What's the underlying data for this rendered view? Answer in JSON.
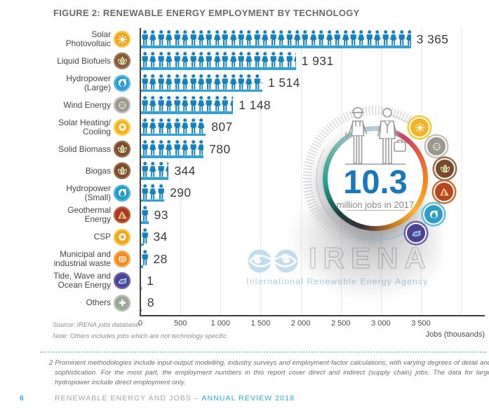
{
  "title": "FIGURE 2: RENEWABLE ENERGY EMPLOYMENT BY TECHNOLOGY",
  "chart_data": {
    "type": "bar",
    "subtype": "pictogram",
    "orientation": "horizontal",
    "title": "FIGURE 2: RENEWABLE ENERGY EMPLOYMENT BY TECHNOLOGY",
    "xlabel": "Jobs (thousands)",
    "xlim": [
      0,
      4000
    ],
    "x_ticks": [
      0,
      500,
      1000,
      1500,
      2000,
      2500,
      3000,
      3500
    ],
    "x_tick_labels": [
      "0",
      "500",
      "1 000",
      "1 500",
      "2 000",
      "2 500",
      "3 000",
      "3 500"
    ],
    "grid": true,
    "person_unit_jobs_thousands": 100,
    "categories": [
      "Solar Photovoltaic",
      "Liquid Biofuels",
      "Hydropower (Large)",
      "Wind Energy",
      "Solar Heating/Cooling",
      "Solid Biomass",
      "Biogas",
      "Hydropower (Small)",
      "Geothermal Energy",
      "CSP",
      "Municipal and industrial waste",
      "Tide, Wave and Ocean Energy",
      "Others"
    ],
    "values": [
      3365,
      1931,
      1514,
      1148,
      807,
      780,
      344,
      290,
      93,
      34,
      28,
      1,
      8
    ],
    "value_labels": [
      "3 365",
      "1 931",
      "1 514",
      "1 148",
      "807",
      "780",
      "344",
      "290",
      "93",
      "34",
      "28",
      "1",
      "8"
    ],
    "rows": [
      {
        "label": "Solar\nPhotovoltaic",
        "icon": "sun",
        "bg": "#F0A41E",
        "ring": "#F8CB4E"
      },
      {
        "label": "Liquid Biofuels",
        "icon": "leaf",
        "bg": "#86583A",
        "ring": "#A37C52"
      },
      {
        "label": "Hydropower\n(Large)",
        "icon": "drop",
        "bg": "#2E9CD6",
        "ring": "#63BBE6"
      },
      {
        "label": "Wind Energy",
        "icon": "wind",
        "bg": "#99998F",
        "ring": "#C0C0B6"
      },
      {
        "label": "Solar Heating/\nCooling",
        "icon": "ring",
        "bg": "#F7B11C",
        "ring": "#FBD24F"
      },
      {
        "label": "Solid Biomass",
        "icon": "leaf",
        "bg": "#7A4A2C",
        "ring": "#9A6C45"
      },
      {
        "label": "Biogas",
        "icon": "leaf",
        "bg": "#7A4A2C",
        "ring": "#9A6C45"
      },
      {
        "label": "Hydropower\n(Small)",
        "icon": "drop",
        "bg": "#2399C6",
        "ring": "#55B7D9"
      },
      {
        "label": "Geothermal\nEnergy",
        "icon": "volcano",
        "bg": "#A63A22",
        "ring": "#C25E3A"
      },
      {
        "label": "CSP",
        "icon": "ring",
        "bg": "#F2A51D",
        "ring": "#F8C94A"
      },
      {
        "label": "Municipal and\nindustrial waste",
        "icon": "bin",
        "bg": "#F18A21",
        "ring": "#F6AE58"
      },
      {
        "label": "Tide, Wave and\nOcean Energy",
        "icon": "wave",
        "bg": "#4D4392",
        "ring": "#6E61B2"
      },
      {
        "label": "Others",
        "icon": "plus",
        "bg": "#9BA89A",
        "ring": "#B7C2B5"
      }
    ]
  },
  "badge": {
    "value": "10.3",
    "caption": "million jobs in 2017",
    "satellites": [
      {
        "icon": "sun",
        "bg": "#F6B221",
        "ring": "#F2CB2E"
      },
      {
        "icon": "wind",
        "bg": "#99998F",
        "ring": "#C2C2B8"
      },
      {
        "icon": "leaf",
        "bg": "#7A4A2C",
        "ring": "#9A6C45"
      },
      {
        "icon": "volcano",
        "bg": "#B6461E",
        "ring": "#D26A30"
      },
      {
        "icon": "drop",
        "bg": "#2E9BC8",
        "ring": "#5CC0E0"
      },
      {
        "icon": "wave",
        "bg": "#4A4391",
        "ring": "#6A5FB0"
      }
    ]
  },
  "watermark": {
    "acronym": "IRENA",
    "tagline": "International Renewable Energy Agency"
  },
  "notes": {
    "source": "Source: IRENA jobs database.",
    "note": "Note: Others includes jobs which are not technology specific."
  },
  "footnote": "2 Prominent methodologies include input-output modelling, industry surveys and employment-factor calculations, with varying degrees of detail and sophistication. For the most part, the employment numbers in this report cover direct and indirect (supply chain) jobs. The data for large hydropower include direct employment only.",
  "footer": {
    "page": "6",
    "series": "RENEWABLE ENERGY AND JOBS – ",
    "review": "ANNUAL REVIEW 2018"
  },
  "colors": {
    "person": "#1480BD",
    "baseline_bar": "#2EA2DB",
    "value_text": "#3A3A3A",
    "badge_number": "#1878BE",
    "footer_blue": "#29ABE2",
    "grid": "#E8E8E8",
    "axis": "#3F3F3F"
  }
}
